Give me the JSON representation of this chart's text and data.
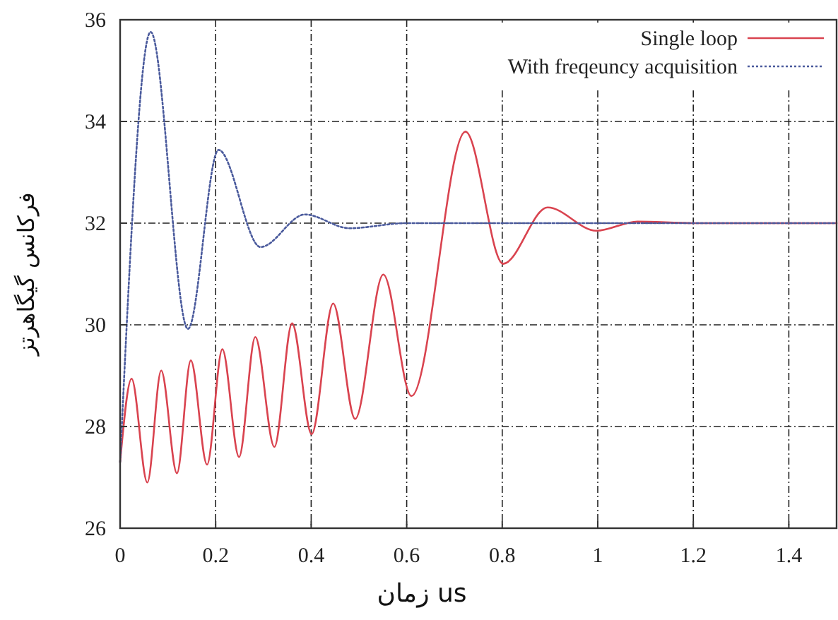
{
  "chart_data": {
    "type": "line",
    "xlabel": "زمان us",
    "ylabel": "فرکانس گیگاهرتز",
    "xlim": [
      0,
      1.5
    ],
    "ylim": [
      26,
      36
    ],
    "xticks": [
      0,
      0.2,
      0.4,
      0.6,
      0.8,
      1,
      1.2,
      1.4
    ],
    "yticks": [
      26,
      28,
      30,
      32,
      34,
      36
    ],
    "grid": true,
    "legend": "top right",
    "marker": "none",
    "series": [
      {
        "name": "Single loop",
        "color": "#d9434f",
        "line_style": "solid",
        "x": [
          0,
          0.024,
          0.057,
          0.086,
          0.119,
          0.148,
          0.182,
          0.214,
          0.249,
          0.283,
          0.323,
          0.36,
          0.401,
          0.446,
          0.492,
          0.551,
          0.61,
          0.723,
          0.802,
          0.895,
          0.997,
          1.083,
          1.2,
          1.5
        ],
        "values": [
          27.3,
          28.94,
          26.9,
          29.1,
          27.08,
          29.3,
          27.25,
          29.52,
          27.4,
          29.76,
          27.6,
          30.03,
          27.85,
          30.42,
          28.15,
          30.99,
          28.6,
          33.8,
          31.2,
          32.31,
          31.85,
          32.03,
          32,
          32
        ]
      },
      {
        "name": "With freqeuncy acquisition",
        "color": "#4a5a9c",
        "line_style": "dotted",
        "x": [
          0,
          0.064,
          0.142,
          0.206,
          0.294,
          0.387,
          0.48,
          0.6,
          1.5
        ],
        "values": [
          27.3,
          35.76,
          29.92,
          33.44,
          31.53,
          32.17,
          31.9,
          32,
          32
        ]
      }
    ]
  }
}
